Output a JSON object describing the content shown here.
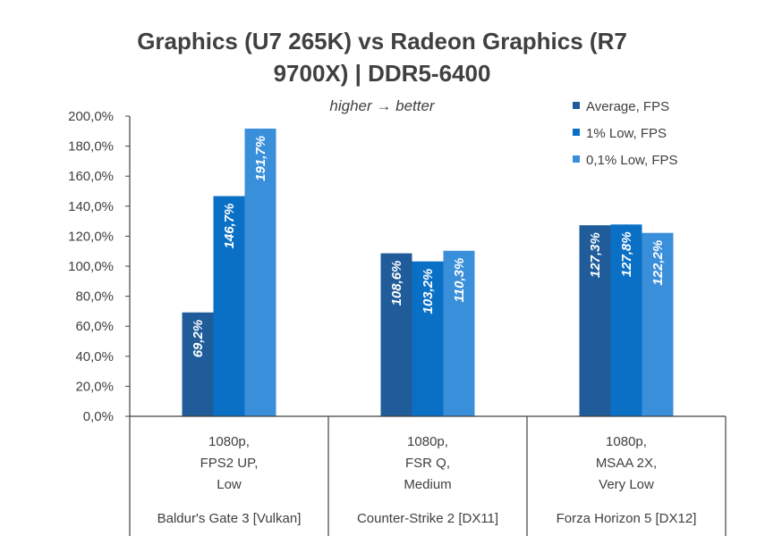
{
  "chart_data": {
    "type": "bar",
    "title_lines": [
      "Graphics (U7 265K) vs Radeon Graphics (R7",
      "9700X) | DDR5-6400"
    ],
    "subtitle": "higher → better",
    "ylim": [
      0,
      200
    ],
    "yticks": [
      "0,0%",
      "20,0%",
      "40,0%",
      "60,0%",
      "80,0%",
      "100,0%",
      "120,0%",
      "140,0%",
      "160,0%",
      "180,0%",
      "200,0%"
    ],
    "categories": [
      {
        "settings": [
          "1080p,",
          "FPS2 UP,",
          "Low"
        ],
        "game": "Baldur's Gate 3 [Vulkan]"
      },
      {
        "settings": [
          "1080p,",
          "FSR Q,",
          "Medium"
        ],
        "game": "Counter-Strike 2 [DX11]"
      },
      {
        "settings": [
          "1080p,",
          "MSAA 2X,",
          "Very Low"
        ],
        "game": "Forza Horizon 5 [DX12]"
      }
    ],
    "series": [
      {
        "name": "Average, FPS",
        "color": "#1F5C99",
        "values": [
          69.2,
          108.6,
          127.3
        ],
        "labels": [
          "69,2%",
          "108,6%",
          "127,3%"
        ]
      },
      {
        "name": "1% Low, FPS",
        "color": "#0A70C6",
        "values": [
          146.7,
          103.2,
          127.8
        ],
        "labels": [
          "146,7%",
          "103,2%",
          "127,8%"
        ]
      },
      {
        "name": "0,1% Low, FPS",
        "color": "#3A8FDB",
        "values": [
          191.7,
          110.3,
          122.2
        ],
        "labels": [
          "191,7%",
          "110,3%",
          "122,2%"
        ]
      }
    ],
    "legend_position": "top-right",
    "grid": false
  }
}
